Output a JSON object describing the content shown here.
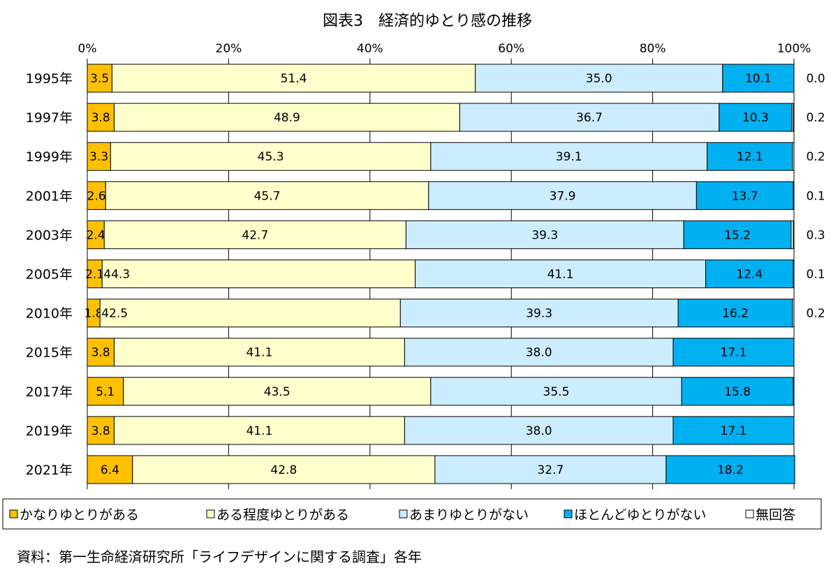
{
  "chart_data": {
    "type": "bar",
    "orientation": "horizontal",
    "stacked": "percent",
    "title": "図表3　経済的ゆとり感の推移",
    "xlim": [
      0,
      100
    ],
    "x_ticks": [
      "0%",
      "20%",
      "40%",
      "60%",
      "80%",
      "100%"
    ],
    "categories": [
      "1995年",
      "1997年",
      "1999年",
      "2001年",
      "2003年",
      "2005年",
      "2010年",
      "2015年",
      "2017年",
      "2019年",
      "2021年"
    ],
    "series": [
      {
        "name": "かなりゆとりがある",
        "color": "#FFC000",
        "values": [
          3.5,
          3.8,
          3.3,
          2.6,
          2.4,
          2.1,
          1.8,
          3.8,
          5.1,
          3.8,
          6.4
        ],
        "labels": [
          "3.5",
          "3.8",
          "3.3",
          "2.6",
          "2.4",
          "2.1",
          "1.8",
          "3.8",
          "5.1",
          "3.8",
          "6.4"
        ]
      },
      {
        "name": "ある程度ゆとりがある",
        "color": "#FFFFCC",
        "values": [
          51.4,
          48.9,
          45.3,
          45.7,
          42.7,
          44.3,
          42.5,
          41.1,
          43.5,
          41.1,
          42.8
        ],
        "labels": [
          "51.4",
          "48.9",
          "45.3",
          "45.7",
          "42.7",
          "44.3",
          "42.5",
          "41.1",
          "43.5",
          "41.1",
          "42.8"
        ]
      },
      {
        "name": "あまりゆとりがない",
        "color": "#CCECFF",
        "values": [
          35.0,
          36.7,
          39.1,
          37.9,
          39.3,
          41.1,
          39.3,
          38.0,
          35.5,
          38.0,
          32.7
        ],
        "labels": [
          "35.0",
          "36.7",
          "39.1",
          "37.9",
          "39.3",
          "41.1",
          "39.3",
          "38.0",
          "35.5",
          "38.0",
          "32.7"
        ]
      },
      {
        "name": "ほとんどゆとりがない",
        "color": "#00B0F0",
        "values": [
          10.1,
          10.3,
          12.1,
          13.7,
          15.2,
          12.4,
          16.2,
          17.1,
          15.8,
          17.1,
          18.2
        ],
        "labels": [
          "10.1",
          "10.3",
          "12.1",
          "13.7",
          "15.2",
          "12.4",
          "16.2",
          "17.1",
          "15.8",
          "17.1",
          "18.2"
        ]
      },
      {
        "name": "無回答",
        "color": "#FFFFFF",
        "values": [
          0.0,
          0.2,
          0.2,
          0.1,
          0.3,
          0.1,
          0.2,
          0,
          0,
          0,
          0
        ],
        "labels": [
          "0.0",
          "0.2",
          "0.2",
          "0.1",
          "0.3",
          "0.1",
          "0.2",
          "",
          "",
          "",
          ""
        ]
      }
    ],
    "legend_position": "bottom",
    "grid": true
  },
  "source_note": "資料：第一生命経済研究所「ライフデザインに関する調査」各年"
}
